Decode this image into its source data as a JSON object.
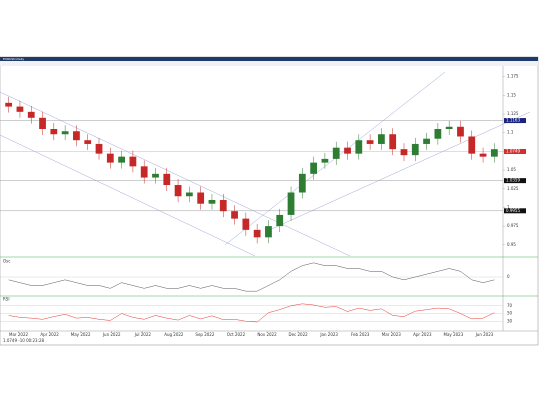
{
  "window_title": "EURUSD,Daily",
  "status_text": "1.0749  -10  00:23:28",
  "chart_data": {
    "type": "candlestick",
    "open": [
      1.14,
      1.135,
      1.128,
      1.12,
      1.105,
      1.098,
      1.102,
      1.09,
      1.085,
      1.072,
      1.06,
      1.068,
      1.055,
      1.04,
      1.045,
      1.03,
      1.015,
      1.02,
      1.005,
      1.01,
      0.995,
      0.985,
      0.97,
      0.96,
      0.975,
      0.99,
      1.02,
      1.045,
      1.06,
      1.065,
      1.08,
      1.072,
      1.09,
      1.085,
      1.098,
      1.078,
      1.07,
      1.085,
      1.092,
      1.105,
      1.108,
      1.095,
      1.072,
      1.068
    ],
    "high": [
      1.148,
      1.143,
      1.136,
      1.128,
      1.113,
      1.11,
      1.11,
      1.098,
      1.093,
      1.08,
      1.076,
      1.076,
      1.063,
      1.053,
      1.053,
      1.038,
      1.028,
      1.028,
      1.018,
      1.018,
      1.003,
      0.993,
      0.978,
      0.983,
      0.998,
      1.028,
      1.053,
      1.068,
      1.073,
      1.088,
      1.088,
      1.098,
      1.098,
      1.106,
      1.106,
      1.086,
      1.093,
      1.1,
      1.113,
      1.116,
      1.116,
      1.103,
      1.08,
      1.086
    ],
    "low": [
      1.127,
      1.12,
      1.112,
      1.097,
      1.09,
      1.09,
      1.082,
      1.077,
      1.064,
      1.052,
      1.052,
      1.047,
      1.032,
      1.032,
      1.022,
      1.007,
      1.007,
      0.997,
      0.997,
      0.987,
      0.977,
      0.962,
      0.952,
      0.952,
      0.967,
      0.982,
      1.012,
      1.037,
      1.052,
      1.057,
      1.064,
      1.064,
      1.077,
      1.077,
      1.07,
      1.062,
      1.062,
      1.077,
      1.084,
      1.097,
      1.087,
      1.064,
      1.06,
      1.06
    ],
    "close": [
      1.135,
      1.128,
      1.12,
      1.105,
      1.098,
      1.102,
      1.09,
      1.085,
      1.072,
      1.06,
      1.068,
      1.055,
      1.04,
      1.045,
      1.03,
      1.015,
      1.02,
      1.005,
      1.01,
      0.995,
      0.985,
      0.97,
      0.96,
      0.975,
      0.99,
      1.02,
      1.045,
      1.06,
      1.065,
      1.08,
      1.072,
      1.09,
      1.085,
      1.098,
      1.078,
      1.07,
      1.085,
      1.092,
      1.105,
      1.108,
      1.095,
      1.072,
      1.068,
      1.078
    ],
    "up_color": "#2e7d32",
    "down_color": "#c62828",
    "ylim": [
      0.935,
      1.188
    ],
    "yticks": [
      0.95,
      0.975,
      1.0,
      1.025,
      1.05,
      1.075,
      1.1,
      1.125,
      1.15,
      1.175
    ],
    "levels": [
      {
        "value": 1.1163,
        "color": "#1a237e"
      },
      {
        "value": 1.0749,
        "color": "#d32f2f"
      },
      {
        "value": 1.0359,
        "color": "#111111"
      },
      {
        "value": 0.9955,
        "color": "#111111"
      }
    ],
    "xtick_labels": [
      "Mar 2022",
      "Apr 2022",
      "May 2022",
      "Jun 2022",
      "Jul 2022",
      "Aug 2022",
      "Sep 2022",
      "Oct 2022",
      "Nov 2022",
      "Dec 2022",
      "Jan 2023",
      "Feb 2023",
      "Mar 2023",
      "Apr 2023",
      "May 2023",
      "Jun 2023"
    ],
    "indicators": [
      {
        "name": "Osc",
        "color": "#555555",
        "ylim": [
          -0.06,
          0.06
        ],
        "yticks": [
          0
        ],
        "values": [
          -0.01,
          -0.02,
          -0.03,
          -0.03,
          -0.02,
          -0.01,
          -0.02,
          -0.03,
          -0.03,
          -0.04,
          -0.02,
          -0.03,
          -0.04,
          -0.03,
          -0.04,
          -0.04,
          -0.03,
          -0.04,
          -0.03,
          -0.04,
          -0.04,
          -0.05,
          -0.05,
          -0.03,
          -0.01,
          0.02,
          0.04,
          0.05,
          0.04,
          0.04,
          0.03,
          0.03,
          0.02,
          0.02,
          0.0,
          -0.01,
          0.0,
          0.01,
          0.02,
          0.03,
          0.02,
          -0.01,
          -0.02,
          -0.01
        ]
      },
      {
        "name": "RSI",
        "color": "#e53935",
        "ylim": [
          10,
          90
        ],
        "yticks": [
          30,
          50,
          70
        ],
        "values": [
          45,
          40,
          38,
          35,
          42,
          48,
          38,
          40,
          35,
          32,
          50,
          40,
          35,
          45,
          38,
          33,
          45,
          36,
          44,
          34,
          35,
          30,
          28,
          52,
          60,
          70,
          75,
          72,
          66,
          68,
          55,
          64,
          58,
          62,
          45,
          42,
          56,
          60,
          64,
          62,
          50,
          36,
          38,
          52
        ]
      }
    ]
  }
}
